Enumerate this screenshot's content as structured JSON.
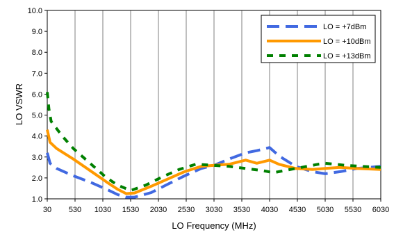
{
  "chart_data": {
    "type": "line",
    "title": "",
    "xlabel": "LO Frequency (MHz)",
    "ylabel": "LO VSWR",
    "xlim": [
      30,
      6030
    ],
    "ylim": [
      1.0,
      10.0
    ],
    "x_ticks": [
      "30",
      "530",
      "1030",
      "1530",
      "2030",
      "2530",
      "3030",
      "3530",
      "4030",
      "4530",
      "5030",
      "5530",
      "6030"
    ],
    "y_ticks": [
      "1.0",
      "2.0",
      "3.0",
      "4.0",
      "5.0",
      "6.0",
      "7.0",
      "8.0",
      "9.0",
      "10.0"
    ],
    "grid": "vertical",
    "legend_position": "top-right",
    "series": [
      {
        "name": "LO = +7dBm",
        "color": "#4169E1",
        "style": "dashed",
        "points": [
          [
            30,
            3.2
          ],
          [
            80,
            2.7
          ],
          [
            200,
            2.45
          ],
          [
            500,
            2.1
          ],
          [
            800,
            1.8
          ],
          [
            1100,
            1.45
          ],
          [
            1300,
            1.2
          ],
          [
            1450,
            1.08
          ],
          [
            1600,
            1.08
          ],
          [
            1900,
            1.3
          ],
          [
            2200,
            1.7
          ],
          [
            2500,
            2.1
          ],
          [
            2800,
            2.45
          ],
          [
            3030,
            2.6
          ],
          [
            3300,
            2.9
          ],
          [
            3600,
            3.2
          ],
          [
            3800,
            3.3
          ],
          [
            4030,
            3.45
          ],
          [
            4200,
            3.05
          ],
          [
            4500,
            2.55
          ],
          [
            4800,
            2.3
          ],
          [
            5030,
            2.2
          ],
          [
            5300,
            2.3
          ],
          [
            5600,
            2.45
          ],
          [
            6030,
            2.55
          ]
        ]
      },
      {
        "name": "LO = +10dBm",
        "color": "#FF9900",
        "style": "solid",
        "points": [
          [
            30,
            4.3
          ],
          [
            80,
            3.7
          ],
          [
            200,
            3.4
          ],
          [
            500,
            2.9
          ],
          [
            800,
            2.35
          ],
          [
            1100,
            1.8
          ],
          [
            1300,
            1.45
          ],
          [
            1450,
            1.25
          ],
          [
            1600,
            1.28
          ],
          [
            1900,
            1.6
          ],
          [
            2200,
            1.95
          ],
          [
            2500,
            2.3
          ],
          [
            2800,
            2.55
          ],
          [
            3030,
            2.6
          ],
          [
            3300,
            2.65
          ],
          [
            3600,
            2.85
          ],
          [
            3800,
            2.7
          ],
          [
            4030,
            2.85
          ],
          [
            4200,
            2.65
          ],
          [
            4500,
            2.45
          ],
          [
            4800,
            2.4
          ],
          [
            5030,
            2.45
          ],
          [
            5300,
            2.5
          ],
          [
            5600,
            2.45
          ],
          [
            6030,
            2.4
          ]
        ]
      },
      {
        "name": "LO = +13dBm",
        "color": "#008000",
        "style": "dashed",
        "points": [
          [
            30,
            6.1
          ],
          [
            60,
            5.3
          ],
          [
            100,
            4.7
          ],
          [
            300,
            4.0
          ],
          [
            500,
            3.4
          ],
          [
            800,
            2.7
          ],
          [
            1100,
            2.0
          ],
          [
            1300,
            1.65
          ],
          [
            1530,
            1.4
          ],
          [
            1800,
            1.65
          ],
          [
            2100,
            2.05
          ],
          [
            2400,
            2.4
          ],
          [
            2700,
            2.65
          ],
          [
            3030,
            2.6
          ],
          [
            3300,
            2.55
          ],
          [
            3600,
            2.45
          ],
          [
            3900,
            2.35
          ],
          [
            4100,
            2.25
          ],
          [
            4300,
            2.35
          ],
          [
            4600,
            2.5
          ],
          [
            4900,
            2.65
          ],
          [
            5030,
            2.7
          ],
          [
            5400,
            2.6
          ],
          [
            5700,
            2.55
          ],
          [
            6030,
            2.5
          ]
        ]
      }
    ]
  }
}
